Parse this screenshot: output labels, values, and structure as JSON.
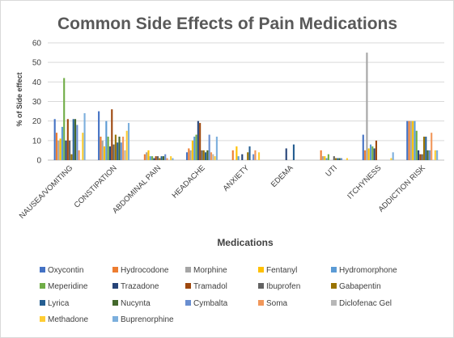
{
  "chart_data": {
    "type": "bar",
    "title": "Common Side Effects of Pain Medications",
    "xlabel": "Medications",
    "ylabel": "% of Side effect",
    "ylim": [
      0,
      60
    ],
    "yticks": [
      0,
      10,
      20,
      30,
      40,
      50,
      60
    ],
    "grid": true,
    "legend": "bottom",
    "categories": [
      "NAUSEA/VOMITING",
      "CONSTIPATION",
      "ABDOMINAL PAIN",
      "HEADACHE",
      "ANXIETY",
      "EDEMA",
      "UTI",
      "ITCHYNESS",
      "ADDICTION RISK"
    ],
    "series": [
      {
        "name": "Oxycontin",
        "color": "#4472C4",
        "values": [
          21,
          25,
          0,
          4,
          0,
          0,
          0,
          13,
          20
        ]
      },
      {
        "name": "Hydrocodone",
        "color": "#ED7D31",
        "values": [
          14,
          12,
          3,
          6,
          5,
          0,
          5,
          5,
          20
        ]
      },
      {
        "name": "Morphine",
        "color": "#A5A5A5",
        "values": [
          10,
          10,
          4,
          5,
          0,
          0,
          2,
          55,
          20
        ]
      },
      {
        "name": "Fentanyl",
        "color": "#FFC000",
        "values": [
          11,
          7,
          5,
          10,
          7,
          0,
          2,
          6,
          20
        ]
      },
      {
        "name": "Hydromorphone",
        "color": "#5B9BD5",
        "values": [
          17,
          20,
          2,
          12,
          2,
          0,
          1,
          8,
          20
        ]
      },
      {
        "name": "Meperidine",
        "color": "#70AD47",
        "values": [
          42,
          12,
          2,
          13,
          0,
          0,
          3,
          7,
          15
        ]
      },
      {
        "name": "Trazadone",
        "color": "#264478",
        "values": [
          10,
          7,
          1,
          20,
          3,
          6,
          0,
          6,
          5
        ]
      },
      {
        "name": "Tramadol",
        "color": "#9E480E",
        "values": [
          21,
          26,
          2,
          19,
          0,
          0,
          0,
          10,
          3
        ]
      },
      {
        "name": "Ibuprofen",
        "color": "#636363",
        "values": [
          10,
          8,
          2,
          5,
          0,
          0,
          2,
          0,
          3
        ]
      },
      {
        "name": "Gabapentin",
        "color": "#997300",
        "values": [
          3,
          13,
          1,
          5,
          4,
          0,
          1,
          0,
          12
        ]
      },
      {
        "name": "Lyrica",
        "color": "#255E91",
        "values": [
          21,
          9,
          2,
          4,
          7,
          8,
          1,
          0,
          12
        ]
      },
      {
        "name": "Nucynta",
        "color": "#43682B",
        "values": [
          21,
          12,
          2,
          5,
          0,
          0,
          1,
          0,
          5
        ]
      },
      {
        "name": "Cymbalta",
        "color": "#698ED0",
        "values": [
          18,
          9,
          3,
          13,
          3,
          0,
          1,
          0,
          5
        ]
      },
      {
        "name": "Soma",
        "color": "#F1975A",
        "values": [
          5,
          12,
          1,
          4,
          5,
          0,
          0,
          0,
          14
        ]
      },
      {
        "name": "Diclofenac Gel",
        "color": "#B7B7B7",
        "values": [
          0,
          5,
          0,
          3,
          0,
          0,
          0,
          0,
          0
        ]
      },
      {
        "name": "Methadone",
        "color": "#FFCD33",
        "values": [
          14,
          15,
          2,
          2,
          4,
          0,
          1,
          1,
          5
        ]
      },
      {
        "name": "Buprenorphine",
        "color": "#7CAFDD",
        "values": [
          24,
          19,
          1,
          12,
          0,
          0,
          0,
          4,
          5
        ]
      }
    ]
  }
}
